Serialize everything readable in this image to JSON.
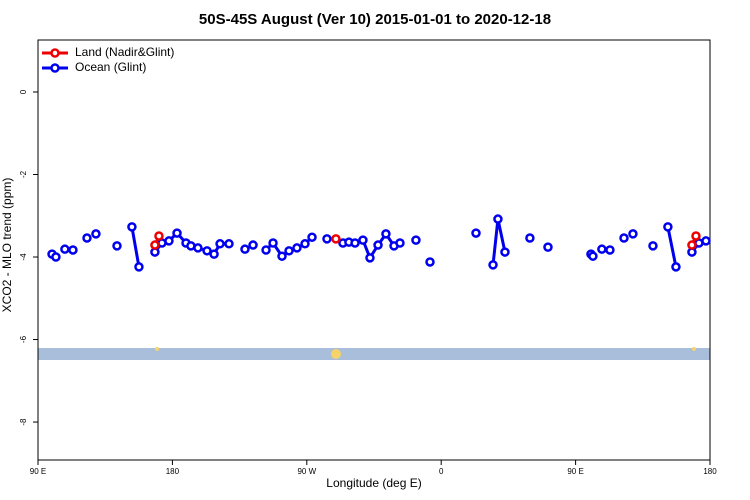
{
  "chart_data": {
    "type": "line",
    "title": "50S-45S August (Ver 10)   2015-01-01 to 2020-12-18",
    "x_label": "Longitude (deg E)",
    "y_label": "XCO2 - MLO trend (ppm)",
    "xlim": [
      90,
      540
    ],
    "ylim": [
      -8.92,
      1.26
    ],
    "xticks": [
      {
        "value": 90,
        "label": "90 E"
      },
      {
        "value": 180,
        "label": "180"
      },
      {
        "value": 270,
        "label": "90 W"
      },
      {
        "value": 360,
        "label": "0"
      },
      {
        "value": 450,
        "label": "90 E"
      },
      {
        "value": 540,
        "label": "180"
      }
    ],
    "yticks": [
      0,
      -2,
      -4,
      -6,
      -8
    ],
    "legend": "top-left",
    "series": [
      {
        "name": "Land (Nadir&Glint)",
        "color": "#ee0000",
        "x": [
          168.3,
          171,
          null,
          289.5,
          null,
          527.9,
          530.6
        ],
        "values": [
          -3.71,
          -3.49,
          null,
          -3.56,
          null,
          -3.71,
          -3.49
        ]
      },
      {
        "name": "Ocean (Glint)",
        "color": "#0000ee",
        "x": [
          99.4,
          102,
          null,
          108,
          null,
          113.4,
          null,
          122.8,
          null,
          128.8,
          null,
          142.9,
          null,
          152.9,
          157.6,
          null,
          168.3,
          173,
          177.7,
          183.1,
          189.1,
          192.4,
          197.1,
          203.2,
          207.9,
          211.9,
          217.9,
          null,
          228.6,
          234,
          null,
          242.7,
          247.4,
          253.4,
          258.1,
          263.4,
          268.8,
          273.5,
          null,
          283.5,
          null,
          294.2,
          298.2,
          302.3,
          307.6,
          312.3,
          317.7,
          323,
          328.4,
          332.4,
          null,
          343.1,
          null,
          352.5,
          null,
          383.3,
          null,
          394.7,
          398,
          402.7,
          null,
          419.4,
          null,
          431.5,
          null,
          460.3,
          461.6,
          null,
          467.6,
          null,
          473,
          null,
          482.4,
          null,
          488.4,
          null,
          501.8,
          null,
          511.8,
          517.2,
          null,
          527.9,
          532.6,
          537.3
        ],
        "values": [
          -3.93,
          -4.0,
          null,
          -3.81,
          null,
          -3.83,
          null,
          -3.54,
          null,
          -3.44,
          null,
          -3.73,
          null,
          -3.27,
          -4.24,
          null,
          -3.88,
          -3.66,
          -3.61,
          -3.42,
          -3.66,
          -3.73,
          -3.78,
          -3.85,
          -3.93,
          -3.68,
          -3.68,
          null,
          -3.81,
          -3.71,
          null,
          -3.83,
          -3.66,
          -3.98,
          -3.85,
          -3.78,
          -3.68,
          -3.52,
          null,
          -3.56,
          null,
          -3.66,
          -3.64,
          -3.66,
          -3.59,
          -4.02,
          -3.71,
          -3.44,
          -3.73,
          -3.66,
          null,
          -3.59,
          null,
          -4.12,
          null,
          -3.42,
          null,
          -4.19,
          -3.08,
          -3.88,
          null,
          -3.54,
          null,
          -3.76,
          null,
          -3.93,
          -3.98,
          null,
          -3.81,
          null,
          -3.83,
          null,
          -3.54,
          null,
          -3.44,
          null,
          -3.73,
          null,
          -3.27,
          -4.24,
          null,
          -3.88,
          -3.66,
          -3.61
        ]
      }
    ]
  }
}
